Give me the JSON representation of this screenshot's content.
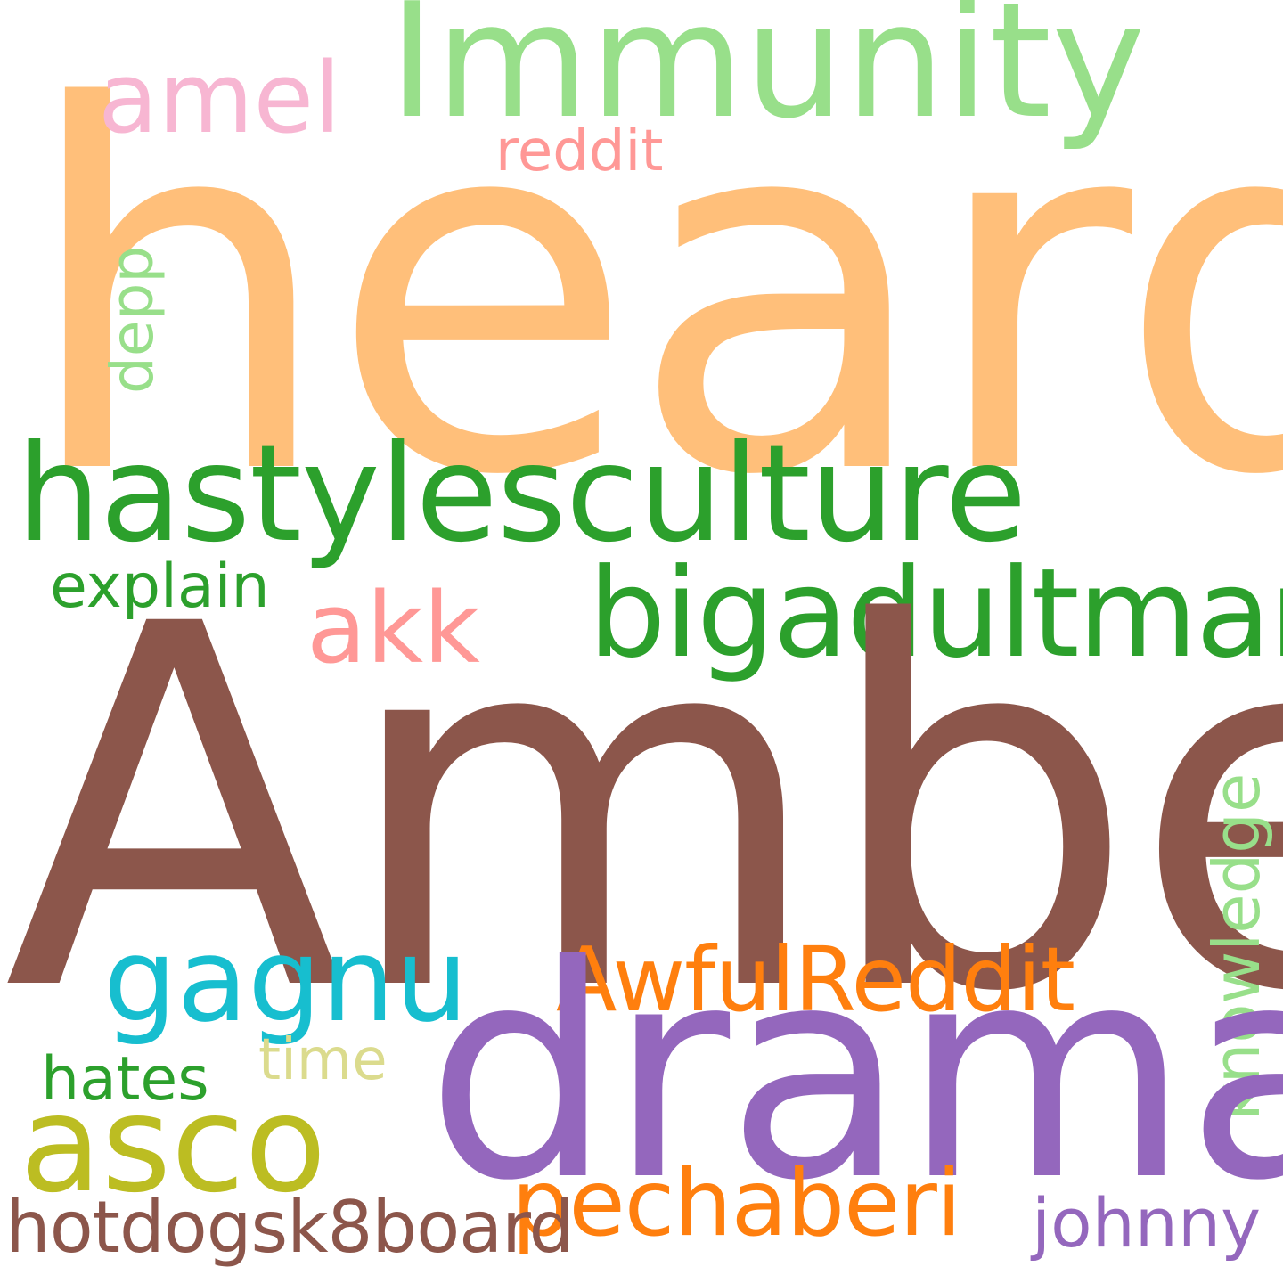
{
  "wordcloud": {
    "background": "#ffffff",
    "words": {
      "heard": {
        "text": "heard",
        "color": "#FFBF7A",
        "orientation": "horizontal"
      },
      "amber": {
        "text": "Amber",
        "color": "#8C564B",
        "orientation": "horizontal"
      },
      "drama": {
        "text": "drama",
        "color": "#9467BD",
        "orientation": "horizontal"
      },
      "immunity": {
        "text": "Immunity",
        "color": "#98DF8A",
        "orientation": "horizontal"
      },
      "hastylesculture": {
        "text": "hastylesculture",
        "color": "#2CA02C",
        "orientation": "horizontal"
      },
      "bigadultman": {
        "text": "bigadultman",
        "color": "#2CA02C",
        "orientation": "horizontal"
      },
      "asco": {
        "text": "asco",
        "color": "#BCBD22",
        "orientation": "horizontal"
      },
      "gagnu": {
        "text": "gagnu",
        "color": "#17BECF",
        "orientation": "horizontal"
      },
      "awfulreddit": {
        "text": "AwfulReddit",
        "color": "#FF7F0E",
        "orientation": "horizontal"
      },
      "pechaberi": {
        "text": "pechaberi",
        "color": "#FF7F0E",
        "orientation": "horizontal"
      },
      "amel": {
        "text": "amel",
        "color": "#F7B6D2",
        "orientation": "horizontal"
      },
      "akk": {
        "text": "akk",
        "color": "#FF9896",
        "orientation": "horizontal"
      },
      "hotdogsk8board": {
        "text": "hotdogsk8board",
        "color": "#8C564B",
        "orientation": "horizontal"
      },
      "johnny": {
        "text": "johnny",
        "color": "#9467BD",
        "orientation": "horizontal"
      },
      "explain": {
        "text": "explain",
        "color": "#2CA02C",
        "orientation": "horizontal"
      },
      "hates": {
        "text": "hates",
        "color": "#2CA02C",
        "orientation": "horizontal"
      },
      "time": {
        "text": "time",
        "color": "#DBDB8D",
        "orientation": "horizontal"
      },
      "reddit": {
        "text": "reddit",
        "color": "#FF9896",
        "orientation": "horizontal"
      },
      "depp": {
        "text": "depp",
        "color": "#98DF8A",
        "orientation": "vertical"
      },
      "knowledge": {
        "text": "knowledge",
        "color": "#98DF8A",
        "orientation": "vertical"
      }
    }
  }
}
